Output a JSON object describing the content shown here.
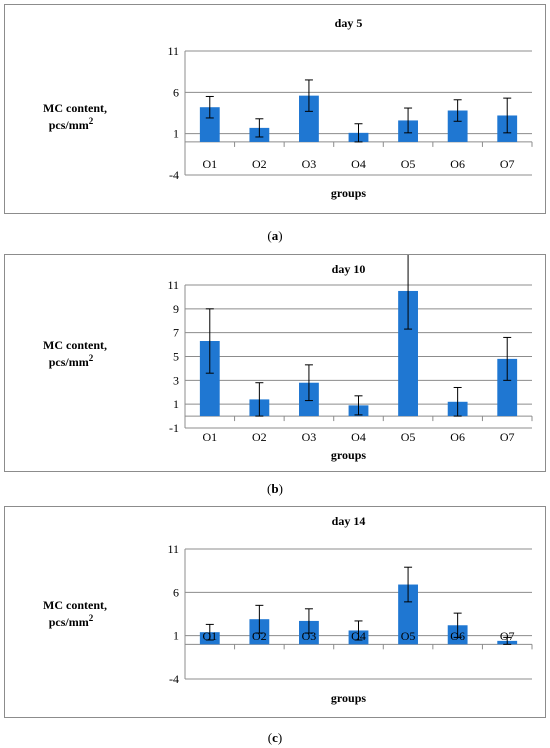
{
  "chart_data": [
    {
      "type": "bar",
      "title": "day 5",
      "ylabel_line1": "MC content,",
      "ylabel_line2": "pcs/mm",
      "ylabel_sup": "2",
      "xlabel": "groups",
      "categories": [
        "O1",
        "O2",
        "O3",
        "O4",
        "O5",
        "O6",
        "O7"
      ],
      "values": [
        4.2,
        1.7,
        5.6,
        1.1,
        2.6,
        3.8,
        3.2
      ],
      "errors": [
        1.3,
        1.1,
        1.9,
        1.1,
        1.5,
        1.3,
        2.1
      ],
      "yticks": [
        -4,
        1,
        6,
        11
      ],
      "ylim": [
        -4,
        11
      ],
      "color": "#1f77d2",
      "grid": true,
      "caption": "a"
    },
    {
      "type": "bar",
      "title": "day 10",
      "ylabel_line1": "MC content,",
      "ylabel_line2": "pcs/mm",
      "ylabel_sup": "2",
      "xlabel": "groups",
      "categories": [
        "O1",
        "O2",
        "O3",
        "O4",
        "O5",
        "O6",
        "O7"
      ],
      "values": [
        6.3,
        1.4,
        2.8,
        0.9,
        10.5,
        1.2,
        4.8
      ],
      "errors": [
        2.7,
        1.4,
        1.5,
        0.8,
        3.2,
        1.2,
        1.8
      ],
      "yticks": [
        -1,
        1,
        3,
        5,
        7,
        9,
        11
      ],
      "ylim": [
        -1,
        11
      ],
      "color": "#1f77d2",
      "grid": true,
      "caption": "b"
    },
    {
      "type": "bar",
      "title": "day 14",
      "ylabel_line1": "MC content,",
      "ylabel_line2": "pcs/mm",
      "ylabel_sup": "2",
      "xlabel": "groups",
      "categories": [
        "O1",
        "O2",
        "O3",
        "O4",
        "O5",
        "O6",
        "O7"
      ],
      "values": [
        1.4,
        2.9,
        2.7,
        1.6,
        6.9,
        2.2,
        0.4
      ],
      "errors": [
        0.9,
        1.6,
        1.4,
        1.1,
        2.0,
        1.4,
        0.4
      ],
      "yticks": [
        -4,
        1,
        6,
        11
      ],
      "ylim": [
        -4,
        11
      ],
      "color": "#1f77d2",
      "grid": true,
      "caption": "c"
    }
  ]
}
